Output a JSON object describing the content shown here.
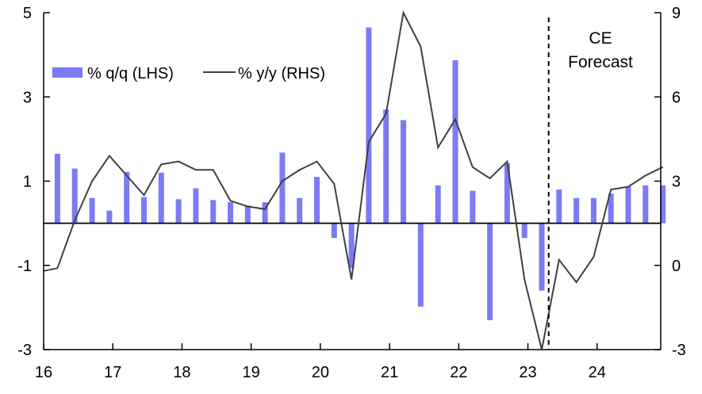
{
  "chart_data": {
    "type": "bar",
    "title": "",
    "legend": {
      "placement": "top-left",
      "entries": [
        {
          "label": "% q/q (LHS)",
          "marker": "bar",
          "color": "#7B7BF5"
        },
        {
          "label": "% y/y (RHS)",
          "marker": "line",
          "color": "#404040"
        }
      ]
    },
    "x_axis": {
      "ticks": [
        "16",
        "17",
        "18",
        "19",
        "20",
        "21",
        "22",
        "23",
        "24"
      ],
      "start": 2016.0,
      "end": 2024.92
    },
    "y_left": {
      "min": -3,
      "max": 5,
      "ticks": [
        "-3",
        "-1",
        "1",
        "3",
        "5"
      ]
    },
    "y_right": {
      "min": -3,
      "max": 9,
      "ticks": [
        "-3",
        "0",
        "3",
        "6",
        "9"
      ]
    },
    "zero_line_left": 0,
    "forecast": {
      "x": 2023.3,
      "label_line1": "CE",
      "label_line2": "Forecast"
    },
    "series": [
      {
        "name": "% q/q (LHS)",
        "type": "bar",
        "axis": "left",
        "color": "#7B7BF5",
        "x": [
          2016.2,
          2016.45,
          2016.7,
          2016.95,
          2017.2,
          2017.45,
          2017.7,
          2017.95,
          2018.2,
          2018.45,
          2018.7,
          2018.95,
          2019.2,
          2019.45,
          2019.7,
          2019.95,
          2020.2,
          2020.45,
          2020.7,
          2020.95,
          2021.2,
          2021.45,
          2021.7,
          2021.95,
          2022.2,
          2022.45,
          2022.7,
          2022.95,
          2023.2,
          2023.45,
          2023.7,
          2023.95,
          2024.2,
          2024.45,
          2024.7,
          2024.95
        ],
        "values": [
          1.65,
          1.3,
          0.6,
          0.3,
          1.22,
          0.62,
          1.2,
          0.57,
          0.83,
          0.55,
          0.5,
          0.42,
          0.5,
          1.68,
          0.6,
          1.1,
          -0.35,
          -1.07,
          4.65,
          2.7,
          2.45,
          -1.98,
          0.9,
          3.87,
          0.77,
          -2.3,
          1.42,
          -0.35,
          -1.6,
          0.8,
          0.6,
          0.6,
          0.7,
          0.88,
          0.9,
          0.9
        ]
      },
      {
        "name": "% y/y (RHS)",
        "type": "line",
        "axis": "right",
        "color": "#404040",
        "x": [
          2016.0,
          2016.2,
          2016.45,
          2016.7,
          2016.95,
          2017.2,
          2017.45,
          2017.7,
          2017.95,
          2018.2,
          2018.45,
          2018.7,
          2018.95,
          2019.2,
          2019.45,
          2019.7,
          2019.95,
          2020.2,
          2020.45,
          2020.7,
          2020.95,
          2021.2,
          2021.45,
          2021.7,
          2021.95,
          2022.2,
          2022.45,
          2022.7,
          2022.95,
          2023.2,
          2023.45,
          2023.7,
          2023.95,
          2024.2,
          2024.45,
          2024.7,
          2024.95
        ],
        "values": [
          -0.2,
          -0.1,
          1.6,
          3.0,
          3.9,
          3.2,
          2.5,
          3.6,
          3.7,
          3.4,
          3.4,
          2.3,
          2.1,
          2.0,
          3.0,
          3.4,
          3.7,
          2.9,
          -0.5,
          4.4,
          5.4,
          9.0,
          7.8,
          4.2,
          5.2,
          3.5,
          3.1,
          3.7,
          -0.5,
          -3.0,
          0.2,
          -0.6,
          0.3,
          2.7,
          2.8,
          3.2,
          3.5
        ]
      }
    ]
  }
}
